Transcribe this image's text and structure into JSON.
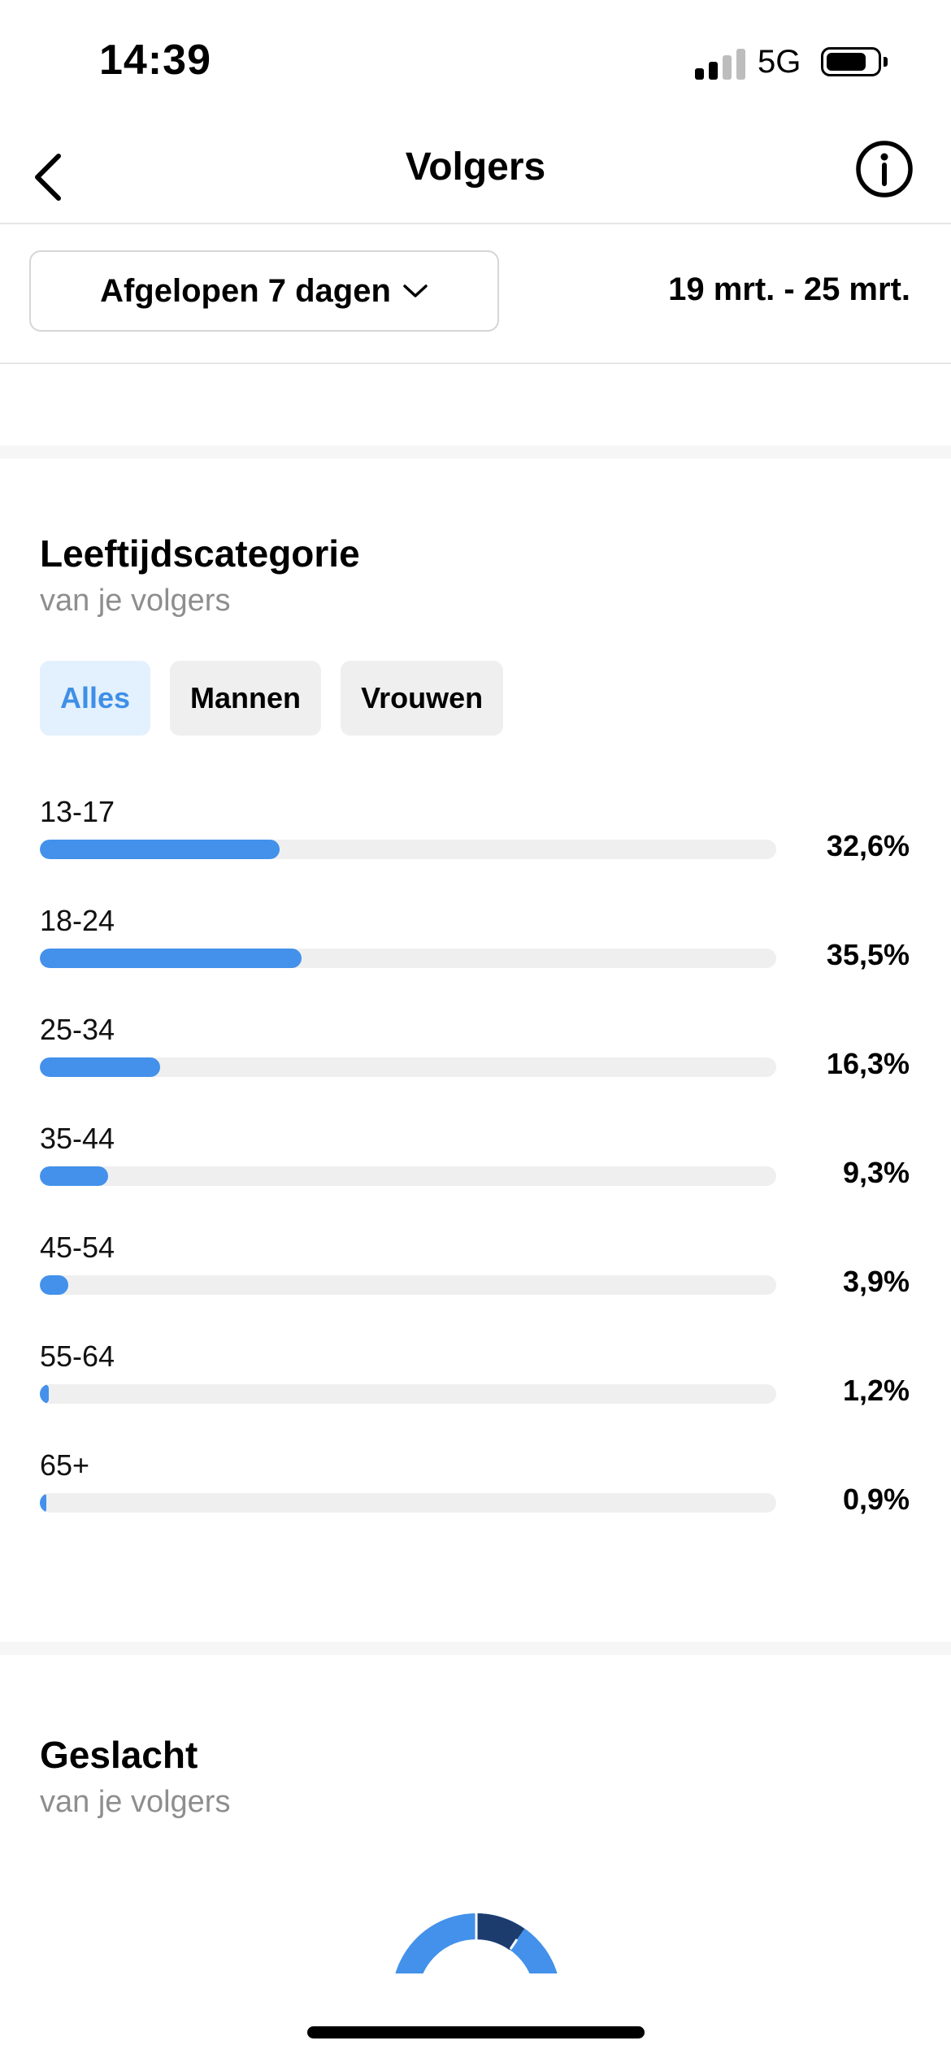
{
  "status_bar": {
    "time": "14:39",
    "network": "5G",
    "signal_bars_active": 2,
    "signal_bars_total": 4,
    "battery_level": 0.8
  },
  "header": {
    "title": "Volgers",
    "back_icon": "chevron-left-icon",
    "info_icon": "info-icon"
  },
  "date_filter": {
    "selected_range": "Afgelopen 7 dagen",
    "dropdown_icon": "chevron-down-icon",
    "date_range": "19 mrt. - 25 mrt."
  },
  "age_section": {
    "title": "Leeftijdscategorie",
    "subtitle": "van je volgers",
    "tabs": [
      {
        "label": "Alles",
        "active": true
      },
      {
        "label": "Mannen",
        "active": false
      },
      {
        "label": "Vrouwen",
        "active": false
      }
    ],
    "rows": [
      {
        "label": "13-17",
        "percent_text": "32,6%",
        "value": 32.6
      },
      {
        "label": "18-24",
        "percent_text": "35,5%",
        "value": 35.5
      },
      {
        "label": "25-34",
        "percent_text": "16,3%",
        "value": 16.3
      },
      {
        "label": "35-44",
        "percent_text": "9,3%",
        "value": 9.3
      },
      {
        "label": "45-54",
        "percent_text": "3,9%",
        "value": 3.9
      },
      {
        "label": "55-64",
        "percent_text": "1,2%",
        "value": 1.2
      },
      {
        "label": "65+",
        "percent_text": "0,9%",
        "value": 0.9
      }
    ]
  },
  "gender_section": {
    "title": "Geslacht",
    "subtitle": "van je volgers"
  },
  "colors": {
    "accent": "#4391ea",
    "dark_accent": "#1d3c6e",
    "track": "#efefef",
    "subtitle": "#8e8e8e"
  }
}
